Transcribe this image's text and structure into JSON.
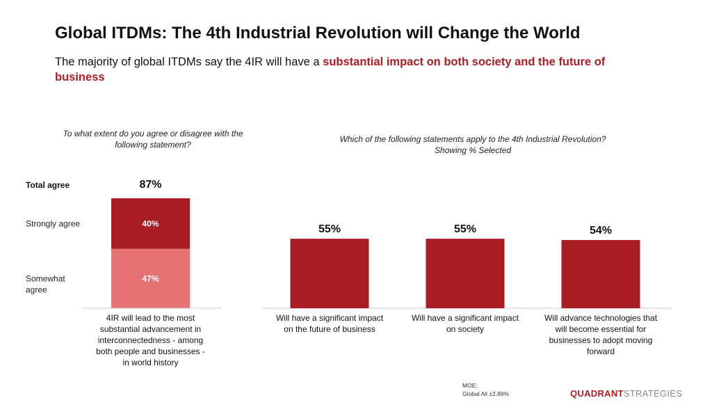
{
  "header": {
    "title": "Global ITDMs: The 4th Industrial Revolution will Change the World",
    "subtitle_plain": "The majority of global ITDMs say the 4IR will have a ",
    "subtitle_highlight": "substantial impact on both society and the future of business"
  },
  "colors": {
    "dark_red": "#a81d24",
    "light_red": "#e57373",
    "brand_red": "#b01c24"
  },
  "chart_data": [
    {
      "type": "bar",
      "stacked": true,
      "question": "To what extent do you agree or disagree with the following statement?",
      "categories": [
        "4IR will lead to the most substantial advancement in interconnectedness - among both people and businesses - in world history"
      ],
      "series": [
        {
          "name": "Somewhat agree",
          "values": [
            47
          ],
          "label": "47%"
        },
        {
          "name": "Strongly agree",
          "values": [
            40
          ],
          "label": "40%"
        }
      ],
      "total": {
        "name": "Total agree",
        "value": 87,
        "label": "87%"
      },
      "ylim": [
        0,
        87
      ]
    },
    {
      "type": "bar",
      "question": "Which of the following statements apply to the 4th Industrial Revolution?",
      "question_note": "Showing % Selected",
      "categories": [
        "Will have a significant impact on the future of business",
        "Will have a significant impact on society",
        "Will advance technologies that will become essential for businesses to adopt moving forward"
      ],
      "values": [
        55,
        55,
        54
      ],
      "labels": [
        "55%",
        "55%",
        "54%"
      ],
      "ylim": [
        0,
        87
      ]
    }
  ],
  "footer": {
    "moe_title": "MOE:",
    "moe_value": "Global All ±2.89%",
    "brand_a": "QUADRANT",
    "brand_b": "STRATEGIES"
  }
}
